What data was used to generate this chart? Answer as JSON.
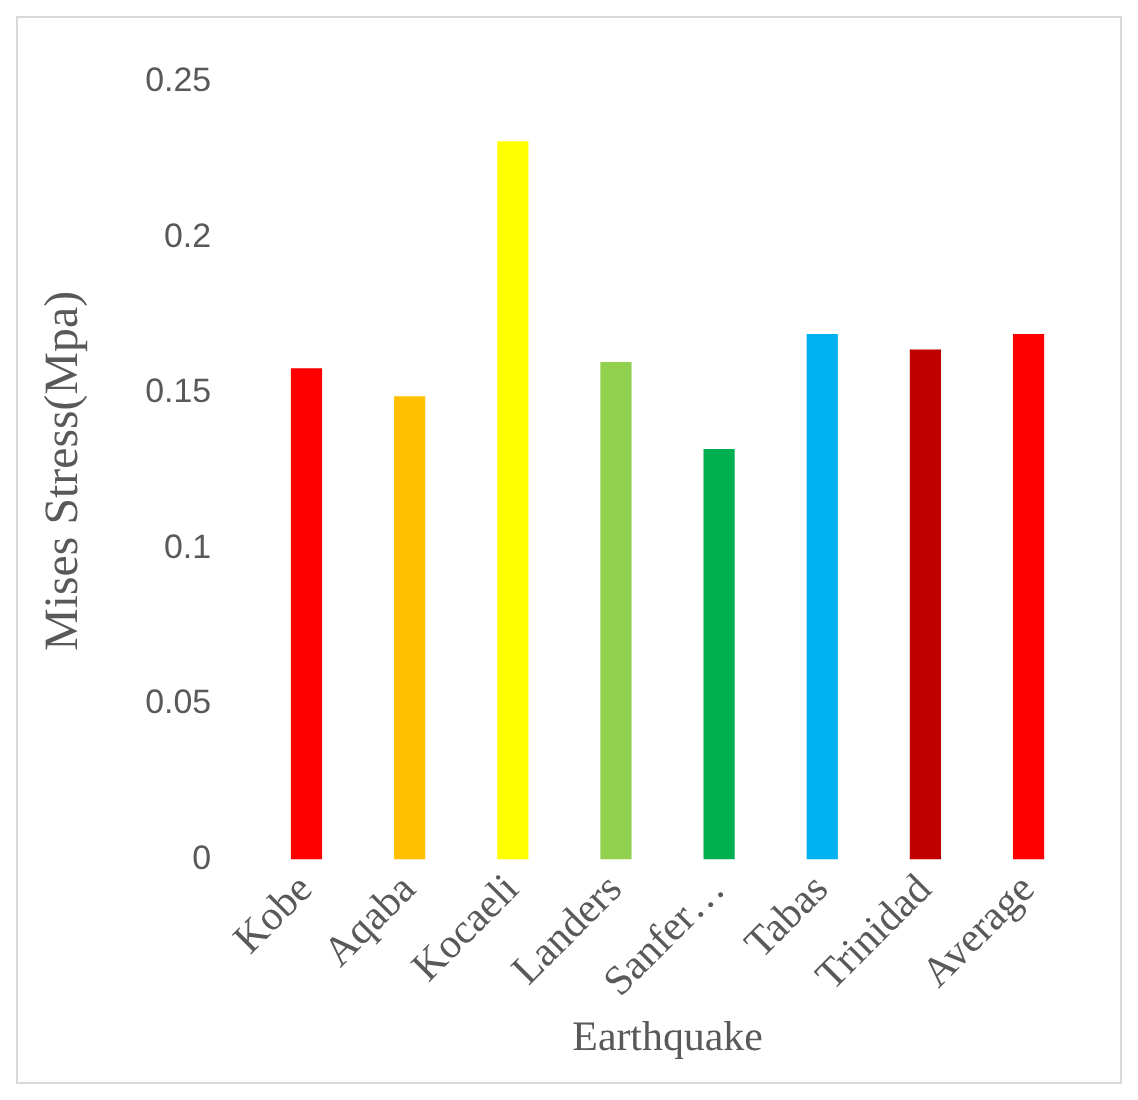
{
  "chart_data": {
    "type": "bar",
    "xlabel": "Earthquake",
    "ylabel": "Mises Stress(Mpa)",
    "categories": [
      "Kobe",
      "Aqaba",
      "Kocaeli",
      "Landers",
      "Sanfer…",
      "Tabas",
      "Trinidad",
      "Average"
    ],
    "values": [
      0.158,
      0.149,
      0.231,
      0.16,
      0.132,
      0.169,
      0.164,
      0.169
    ],
    "colors": [
      "#ff0000",
      "#ffc000",
      "#ffff00",
      "#92d050",
      "#00b050",
      "#00b0f0",
      "#c00000",
      "#ff0000"
    ],
    "ylim": [
      0,
      0.25
    ],
    "yticks": [
      0,
      0.05,
      0.1,
      0.15,
      0.2,
      0.25
    ],
    "grid": false,
    "legend": false
  }
}
